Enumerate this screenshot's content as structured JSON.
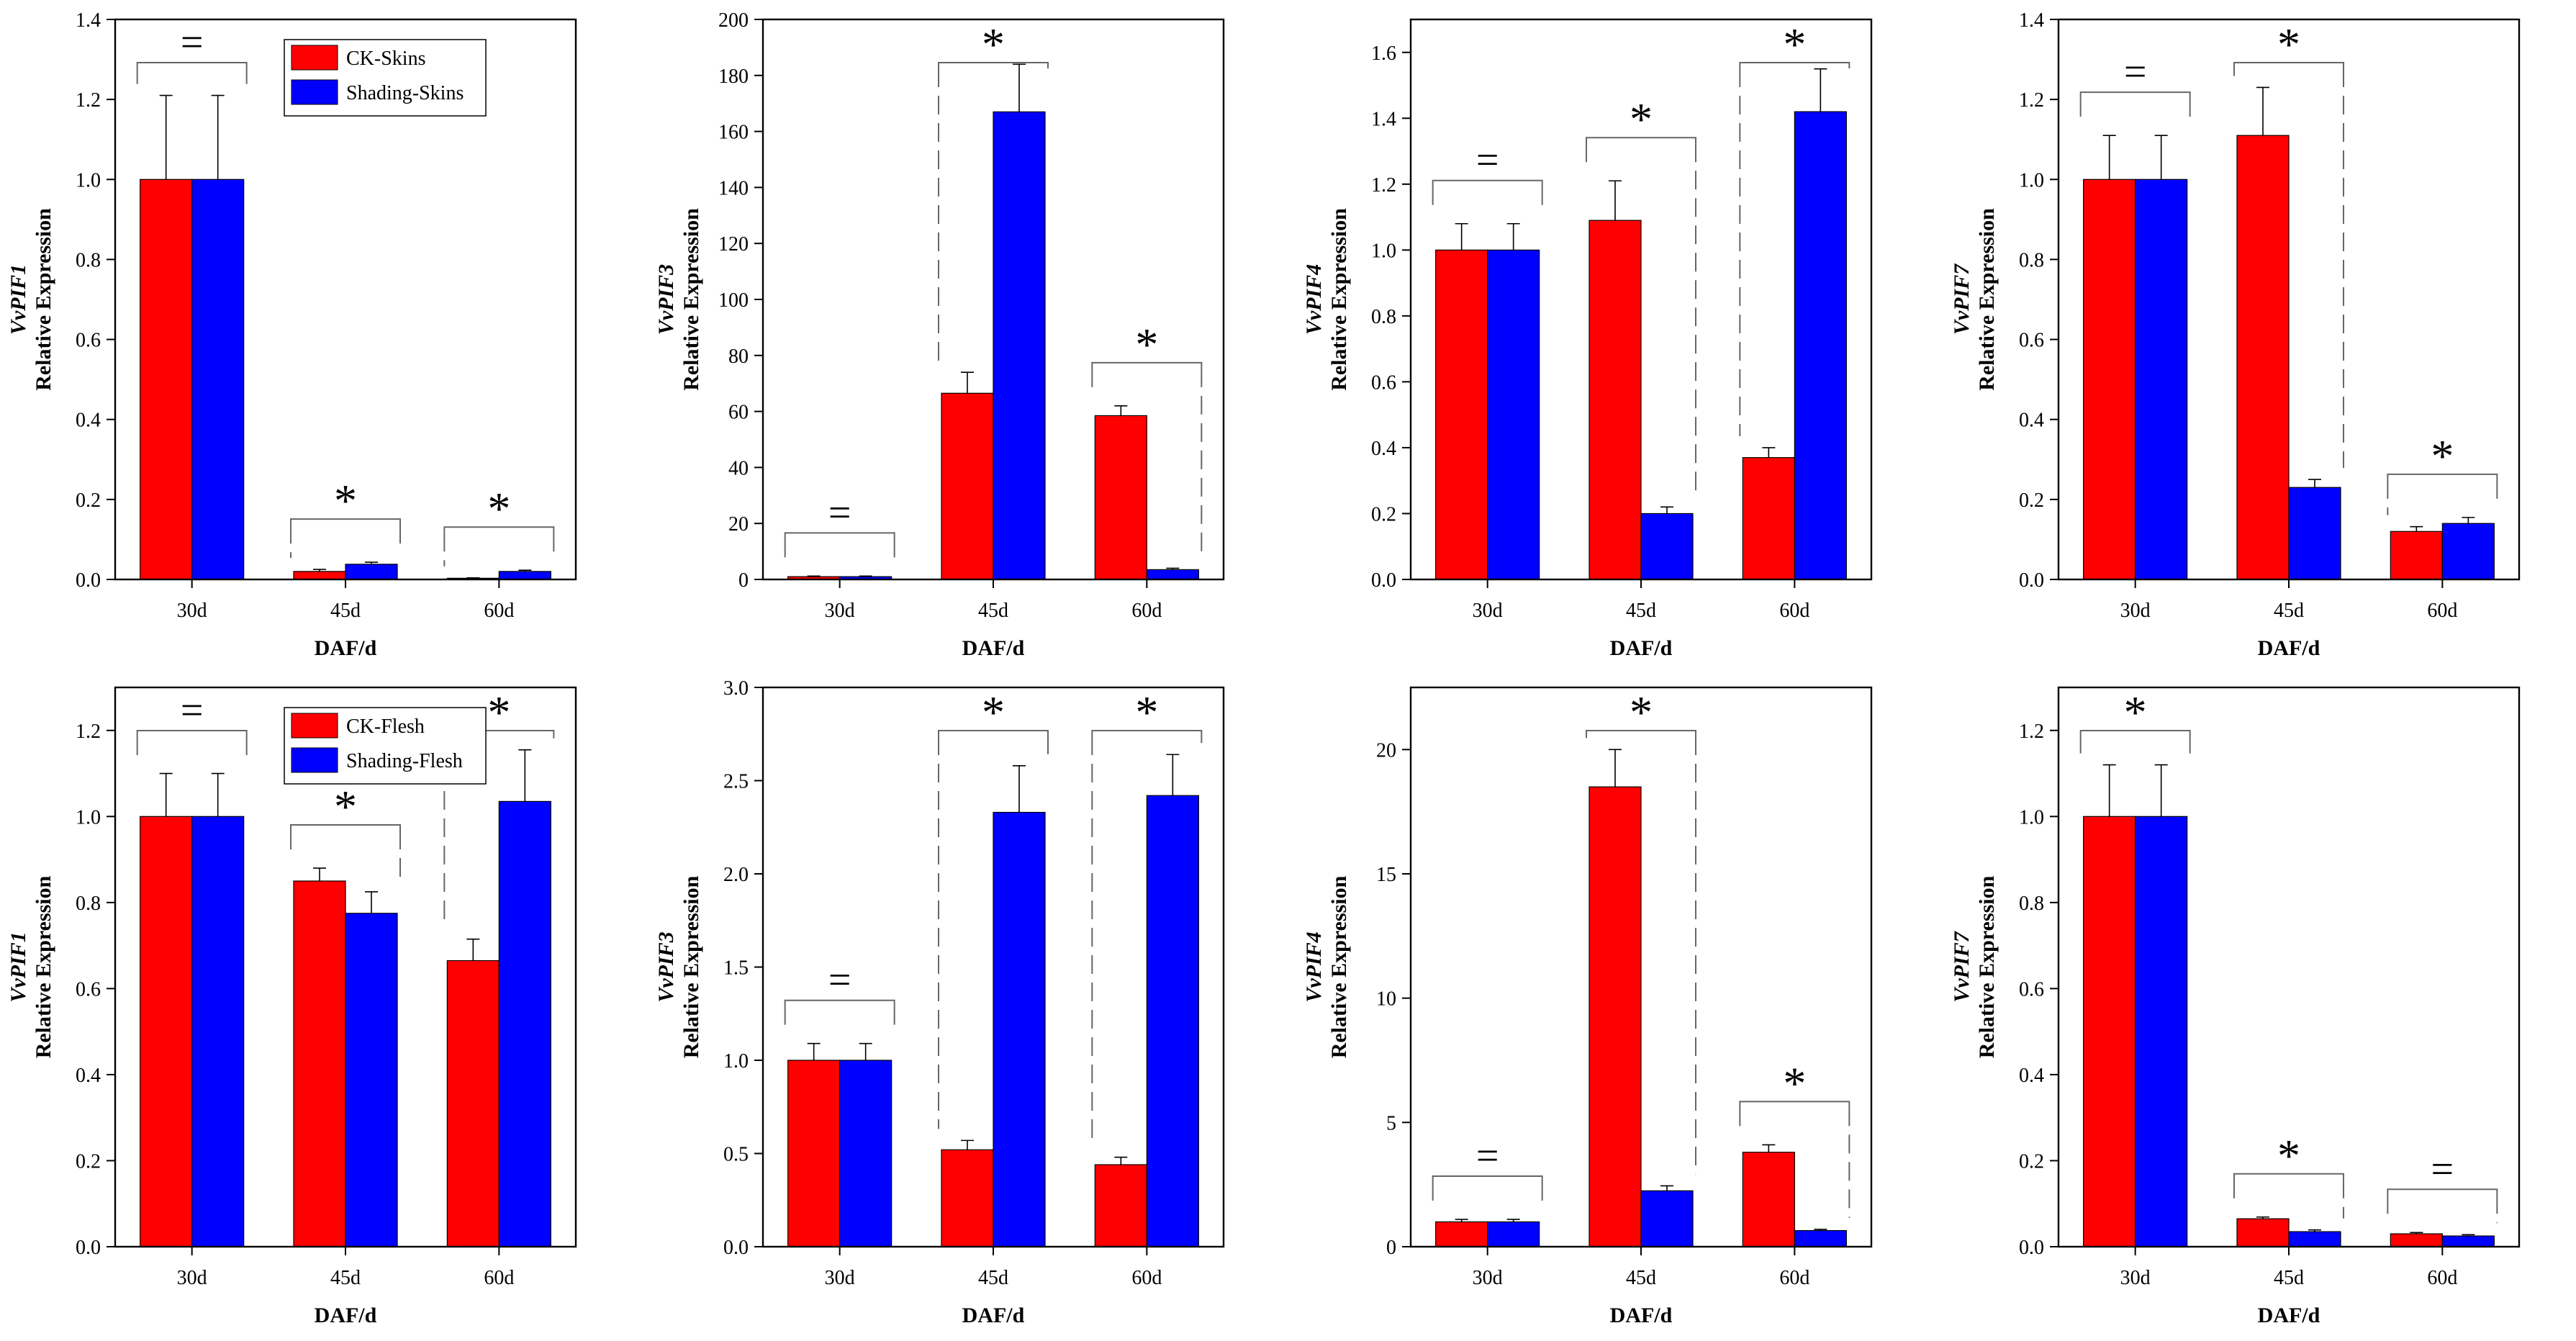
{
  "colors": {
    "ck": "#ff0000",
    "shading": "#0000ff",
    "axis": "#000000",
    "bracket": "#666666"
  },
  "chart_data": [
    {
      "type": "bar",
      "gene": "VvPIF1",
      "ylabel": "Relative Expression",
      "xlabel": "DAF/d",
      "categories": [
        "30d",
        "45d",
        "60d"
      ],
      "ylim": [
        0,
        1.4
      ],
      "yticks": [
        "0.0",
        "0.2",
        "0.4",
        "0.6",
        "0.8",
        "1.0",
        "1.2",
        "1.4"
      ],
      "legend": [
        "CK-Skins",
        "Shading-Skins"
      ],
      "series": [
        {
          "name": "CK-Skins",
          "values": [
            1.0,
            0.02,
            0.003
          ],
          "errors": [
            0.21,
            0.005,
            0.001
          ]
        },
        {
          "name": "Shading-Skins",
          "values": [
            1.0,
            0.038,
            0.02
          ],
          "errors": [
            0.21,
            0.005,
            0.003
          ]
        }
      ],
      "significance": [
        "=",
        "*",
        "*"
      ]
    },
    {
      "type": "bar",
      "gene": "VvPIF3",
      "ylabel": "Relative Expression",
      "xlabel": "DAF/d",
      "categories": [
        "30d",
        "45d",
        "60d"
      ],
      "ylim": [
        0,
        200
      ],
      "yticks": [
        "0",
        "20",
        "40",
        "60",
        "80",
        "100",
        "120",
        "140",
        "160",
        "180",
        "200"
      ],
      "legend": [],
      "series": [
        {
          "name": "CK-Skins",
          "values": [
            1.0,
            66.5,
            58.5
          ],
          "errors": [
            0.2,
            7.5,
            3.5
          ]
        },
        {
          "name": "Shading-Skins",
          "values": [
            1.0,
            167,
            3.5
          ],
          "errors": [
            0.2,
            17,
            0.5
          ]
        }
      ],
      "significance": [
        "=",
        "*",
        "*"
      ]
    },
    {
      "type": "bar",
      "gene": "VvPIF4",
      "ylabel": "Relative Expression",
      "xlabel": "DAF/d",
      "categories": [
        "30d",
        "45d",
        "60d"
      ],
      "ylim": [
        0,
        1.7
      ],
      "yticks": [
        "0.0",
        "0.2",
        "0.4",
        "0.6",
        "0.8",
        "1.0",
        "1.2",
        "1.4",
        "1.6"
      ],
      "legend": [],
      "series": [
        {
          "name": "CK-Skins",
          "values": [
            1.0,
            1.09,
            0.37
          ],
          "errors": [
            0.08,
            0.12,
            0.03
          ]
        },
        {
          "name": "Shading-Skins",
          "values": [
            1.0,
            0.2,
            1.42
          ],
          "errors": [
            0.08,
            0.02,
            0.13
          ]
        }
      ],
      "significance": [
        "=",
        "*",
        "*"
      ]
    },
    {
      "type": "bar",
      "gene": "VvPIF7",
      "ylabel": "Relative Expression",
      "xlabel": "DAF/d",
      "categories": [
        "30d",
        "45d",
        "60d"
      ],
      "ylim": [
        0,
        1.4
      ],
      "yticks": [
        "0.0",
        "0.2",
        "0.4",
        "0.6",
        "0.8",
        "1.0",
        "1.2",
        "1.4"
      ],
      "legend": [],
      "series": [
        {
          "name": "CK-Skins",
          "values": [
            1.0,
            1.11,
            0.12
          ],
          "errors": [
            0.11,
            0.12,
            0.012
          ]
        },
        {
          "name": "Shading-Skins",
          "values": [
            1.0,
            0.23,
            0.14
          ],
          "errors": [
            0.11,
            0.02,
            0.015
          ]
        }
      ],
      "significance": [
        "=",
        "*",
        "*"
      ]
    },
    {
      "type": "bar",
      "gene": "VvPIF1",
      "ylabel": "Relative Expression",
      "xlabel": "DAF/d",
      "categories": [
        "30d",
        "45d",
        "60d"
      ],
      "ylim": [
        0,
        1.3
      ],
      "yticks": [
        "0.0",
        "0.2",
        "0.4",
        "0.6",
        "0.8",
        "1.0",
        "1.2"
      ],
      "legend": [
        "CK-Flesh",
        "Shading-Flesh"
      ],
      "series": [
        {
          "name": "CK-Flesh",
          "values": [
            1.0,
            0.85,
            0.665
          ],
          "errors": [
            0.1,
            0.03,
            0.05
          ]
        },
        {
          "name": "Shading-Flesh",
          "values": [
            1.0,
            0.775,
            1.035
          ],
          "errors": [
            0.1,
            0.05,
            0.12
          ]
        }
      ],
      "significance": [
        "=",
        "*",
        "*"
      ]
    },
    {
      "type": "bar",
      "gene": "VvPIF3",
      "ylabel": "Relative Expression",
      "xlabel": "DAF/d",
      "categories": [
        "30d",
        "45d",
        "60d"
      ],
      "ylim": [
        0,
        3.0
      ],
      "yticks": [
        "0.0",
        "0.5",
        "1.0",
        "1.5",
        "2.0",
        "2.5",
        "3.0"
      ],
      "legend": [],
      "series": [
        {
          "name": "CK-Flesh",
          "values": [
            1.0,
            0.52,
            0.44
          ],
          "errors": [
            0.09,
            0.05,
            0.04
          ]
        },
        {
          "name": "Shading-Flesh",
          "values": [
            1.0,
            2.33,
            2.42
          ],
          "errors": [
            0.09,
            0.25,
            0.22
          ]
        }
      ],
      "significance": [
        "=",
        "*",
        "*"
      ]
    },
    {
      "type": "bar",
      "gene": "VvPIF4",
      "ylabel": "Relative Expression",
      "xlabel": "DAF/d",
      "categories": [
        "30d",
        "45d",
        "60d"
      ],
      "ylim": [
        0,
        22.5
      ],
      "yticks": [
        "0",
        "5",
        "10",
        "15",
        "20"
      ],
      "legend": [],
      "series": [
        {
          "name": "CK-Flesh",
          "values": [
            1.0,
            18.5,
            3.8
          ],
          "errors": [
            0.1,
            1.5,
            0.3
          ]
        },
        {
          "name": "Shading-Flesh",
          "values": [
            1.0,
            2.25,
            0.65
          ],
          "errors": [
            0.1,
            0.2,
            0.05
          ]
        }
      ],
      "significance": [
        "=",
        "*",
        "*"
      ]
    },
    {
      "type": "bar",
      "gene": "VvPIF7",
      "ylabel": "Relative Expression",
      "xlabel": "DAF/d",
      "categories": [
        "30d",
        "45d",
        "60d"
      ],
      "ylim": [
        0,
        1.3
      ],
      "yticks": [
        "0.0",
        "0.2",
        "0.4",
        "0.6",
        "0.8",
        "1.0",
        "1.2"
      ],
      "legend": [],
      "series": [
        {
          "name": "CK-Flesh",
          "values": [
            1.0,
            0.065,
            0.03
          ],
          "errors": [
            0.12,
            0.004,
            0.003
          ]
        },
        {
          "name": "Shading-Flesh",
          "values": [
            1.0,
            0.035,
            0.025
          ],
          "errors": [
            0.12,
            0.004,
            0.003
          ]
        }
      ],
      "significance": [
        "*",
        "*",
        "="
      ]
    }
  ]
}
